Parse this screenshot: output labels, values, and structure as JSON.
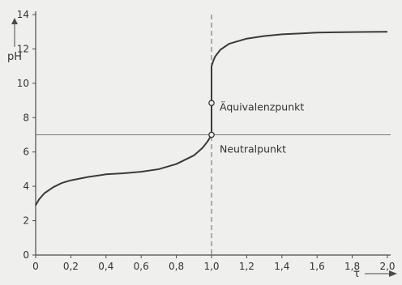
{
  "chart_data": {
    "type": "line",
    "xlabel": "τ",
    "ylabel": "pH",
    "xlim": [
      0,
      2.0
    ],
    "ylim": [
      0,
      14
    ],
    "x_ticks": [
      0,
      0.2,
      0.4,
      0.6,
      0.8,
      1.0,
      1.2,
      1.4,
      1.6,
      1.8,
      2.0
    ],
    "x_tick_labels": [
      "0",
      "0,2",
      "0,4",
      "0,6",
      "0,8",
      "1,0",
      "1,2",
      "1,4",
      "1,6",
      "1,8",
      "2,0"
    ],
    "y_ticks": [
      0,
      2,
      4,
      6,
      8,
      10,
      12,
      14
    ],
    "y_tick_labels": [
      "0",
      "2",
      "4",
      "6",
      "8",
      "10",
      "12",
      "14"
    ],
    "grid": false,
    "series": [
      {
        "x": [
          0,
          0.02,
          0.05,
          0.1,
          0.15,
          0.2,
          0.3,
          0.4,
          0.5,
          0.6,
          0.7,
          0.8,
          0.9,
          0.95,
          0.98,
          1.0,
          1.0,
          1.0,
          1.01,
          1.02,
          1.05,
          1.1,
          1.2,
          1.3,
          1.4,
          1.5,
          1.6,
          1.7,
          1.8,
          1.9,
          2.0
        ],
        "y": [
          2.9,
          3.25,
          3.6,
          3.95,
          4.2,
          4.35,
          4.55,
          4.7,
          4.76,
          4.85,
          5.0,
          5.3,
          5.8,
          6.25,
          6.65,
          7.0,
          8.85,
          11.0,
          11.3,
          11.55,
          11.95,
          12.3,
          12.6,
          12.75,
          12.85,
          12.9,
          12.95,
          12.97,
          12.98,
          12.99,
          13.0
        ]
      }
    ],
    "reference_lines": [
      {
        "orientation": "horizontal",
        "value": 7,
        "style": "solid"
      },
      {
        "orientation": "vertical",
        "value": 1.0,
        "style": "dashed"
      }
    ],
    "annotations": [
      {
        "label": "Äquivalenzpunkt",
        "x": 1.0,
        "y": 8.85
      },
      {
        "label": "Neutralpunkt",
        "x": 1.0,
        "y": 7.0
      }
    ],
    "colors": {
      "line": "#3a3a3a",
      "axis": "#4a4a4a",
      "background": "#efefed"
    }
  }
}
